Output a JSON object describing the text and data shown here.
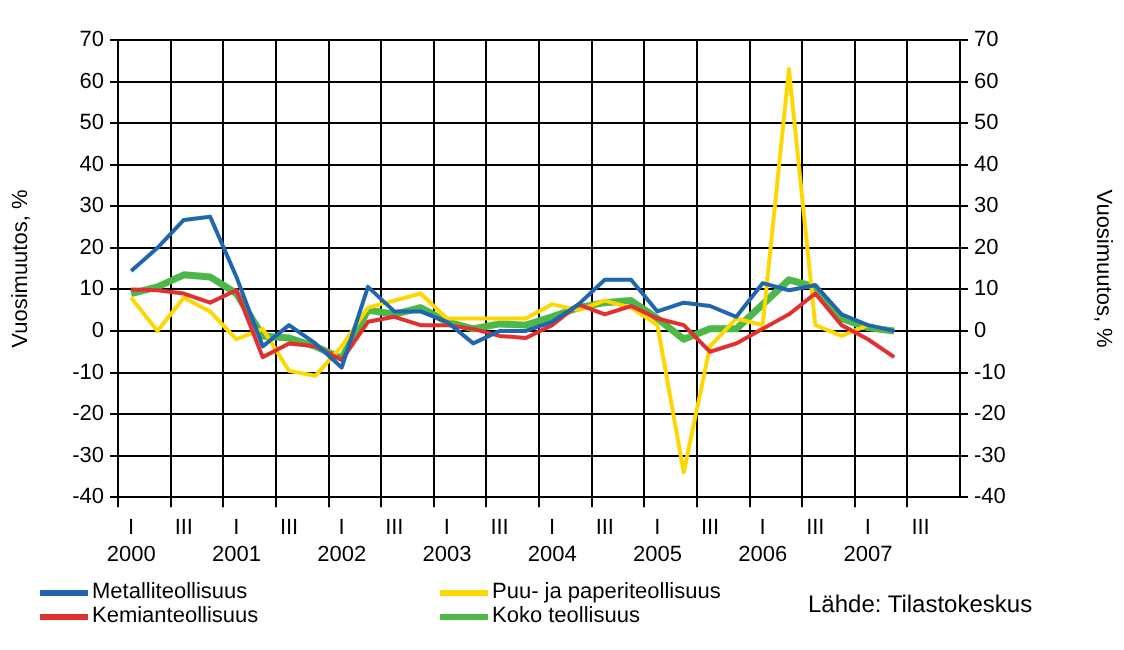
{
  "chart_data": {
    "type": "line",
    "ylabel": "Vuosimuutos, %",
    "y2label": "Vuosimuutos, %",
    "categories": [
      "I\n2000",
      null,
      "III",
      null,
      "I\n2001",
      null,
      "III",
      null,
      "I\n2002",
      null,
      "III",
      null,
      "I\n2003",
      null,
      "III",
      null,
      "I\n2004",
      null,
      "III",
      null,
      "I\n2005",
      null,
      "III",
      null,
      "I\n2006",
      null,
      "III",
      null,
      "I\n2007",
      null,
      "III",
      null
    ],
    "ylim": [
      -40,
      70
    ],
    "yticks": [
      -40,
      -30,
      -20,
      -10,
      0,
      10,
      20,
      30,
      40,
      50,
      60,
      70
    ],
    "y2lim": [
      -40,
      70
    ],
    "y2ticks": [
      -40,
      -30,
      -20,
      -10,
      0,
      10,
      20,
      30,
      40,
      50,
      60,
      70
    ],
    "grid": true,
    "legend": "bottom left",
    "marker": "none",
    "line_style": "solid",
    "annotations": [
      "Lähde: Tilastokeskus"
    ],
    "series": [
      {
        "name": "Metalliteollisuus",
        "color": "#1f66b0",
        "values": [
          14.4,
          20,
          26.7,
          27.5,
          13,
          -3.7,
          1.4,
          -3,
          -8.8,
          10.6,
          4.7,
          4.7,
          2.2,
          -3,
          0,
          0,
          2.2,
          6.4,
          12.3,
          12.3,
          4.7,
          6.8,
          6,
          3.4,
          11.5,
          9.8,
          11,
          4,
          1.4,
          0,
          null,
          null
        ]
      },
      {
        "name": "Kemianteollisuus",
        "color": "#e03030",
        "values": [
          10,
          9.8,
          9,
          6.8,
          9.8,
          -6.3,
          -3,
          -3.7,
          -7,
          2.2,
          3.4,
          1.4,
          1.4,
          0.5,
          -1.2,
          -1.7,
          1.4,
          6.4,
          4,
          6,
          3,
          1.4,
          -5,
          -3,
          0.5,
          4,
          9,
          1.4,
          -2,
          -6.3,
          null,
          null
        ]
      },
      {
        "name": "Puu- ja paperiteollisuus",
        "color": "#ffd700",
        "values": [
          8,
          0,
          8,
          4.7,
          -2,
          0.5,
          -9.6,
          -10.8,
          -3.7,
          5.6,
          7.3,
          9,
          3,
          3,
          3,
          3,
          6.4,
          5,
          7.3,
          5.6,
          1.4,
          -34,
          -3.7,
          3,
          1.4,
          63,
          1.4,
          -1.2,
          1.4,
          0,
          null,
          null
        ]
      },
      {
        "name": "Koko teollisuus",
        "color": "#4cb848",
        "values": [
          9,
          10.6,
          13.5,
          13,
          9,
          -1.2,
          -1.7,
          -3.7,
          -6.6,
          5,
          4,
          5.6,
          2.2,
          0.5,
          1.7,
          1.4,
          3.4,
          5.6,
          6.8,
          7.3,
          3,
          -2,
          0.5,
          0.5,
          6.4,
          12.3,
          10.6,
          3,
          0.8,
          0,
          null,
          null
        ]
      }
    ]
  }
}
